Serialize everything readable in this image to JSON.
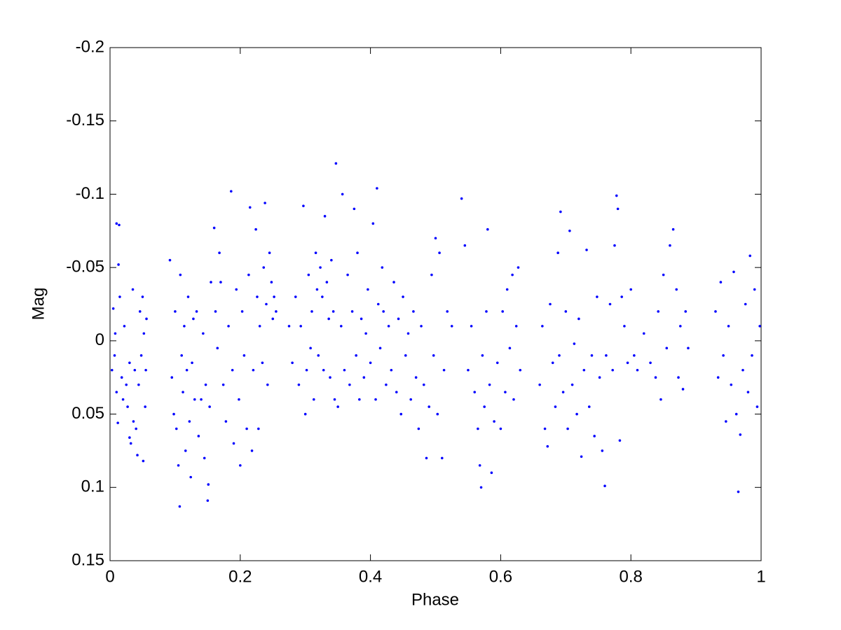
{
  "chart_data": {
    "type": "scatter",
    "xlabel": "Phase",
    "ylabel": "Mag",
    "color": "#0000ff",
    "xlim": [
      0,
      1
    ],
    "ylim": [
      -0.2,
      0.15
    ],
    "yreverse": true,
    "xticks": [
      0,
      0.2,
      0.4,
      0.6,
      0.8,
      1
    ],
    "yticks": [
      -0.2,
      -0.15,
      -0.1,
      -0.05,
      0,
      0.05,
      0.1,
      0.15
    ],
    "x": [
      0.003,
      0.005,
      0.007,
      0.008,
      0.01,
      0.01,
      0.014,
      0.012,
      0.015,
      0.018,
      0.02,
      0.022,
      0.025,
      0.027,
      0.03,
      0.032,
      0.035,
      0.036,
      0.038,
      0.04,
      0.042,
      0.044,
      0.046,
      0.048,
      0.05,
      0.051,
      0.052,
      0.054,
      0.055,
      0.056,
      0.013,
      0.03,
      0.092,
      0.095,
      0.098,
      0.1,
      0.102,
      0.105,
      0.107,
      0.108,
      0.11,
      0.112,
      0.114,
      0.116,
      0.118,
      0.12,
      0.122,
      0.124,
      0.126,
      0.128,
      0.13,
      0.133,
      0.136,
      0.14,
      0.143,
      0.145,
      0.147,
      0.15,
      0.151,
      0.153,
      0.155,
      0.16,
      0.162,
      0.165,
      0.168,
      0.17,
      0.174,
      0.178,
      0.182,
      0.186,
      0.188,
      0.19,
      0.194,
      0.198,
      0.2,
      0.203,
      0.206,
      0.21,
      0.213,
      0.215,
      0.218,
      0.22,
      0.224,
      0.226,
      0.228,
      0.23,
      0.234,
      0.236,
      0.238,
      0.24,
      0.242,
      0.245,
      0.248,
      0.25,
      0.252,
      0.255,
      0.275,
      0.28,
      0.285,
      0.29,
      0.293,
      0.297,
      0.3,
      0.302,
      0.305,
      0.308,
      0.31,
      0.313,
      0.316,
      0.318,
      0.32,
      0.323,
      0.326,
      0.328,
      0.33,
      0.333,
      0.336,
      0.338,
      0.34,
      0.343,
      0.345,
      0.347,
      0.35,
      0.355,
      0.357,
      0.36,
      0.365,
      0.368,
      0.372,
      0.375,
      0.378,
      0.38,
      0.383,
      0.386,
      0.39,
      0.393,
      0.396,
      0.4,
      0.404,
      0.408,
      0.41,
      0.412,
      0.415,
      0.418,
      0.42,
      0.424,
      0.428,
      0.432,
      0.436,
      0.44,
      0.443,
      0.447,
      0.45,
      0.454,
      0.458,
      0.462,
      0.466,
      0.47,
      0.474,
      0.478,
      0.482,
      0.486,
      0.49,
      0.494,
      0.497,
      0.5,
      0.503,
      0.506,
      0.51,
      0.513,
      0.518,
      0.525,
      0.54,
      0.545,
      0.55,
      0.555,
      0.56,
      0.565,
      0.568,
      0.57,
      0.572,
      0.575,
      0.578,
      0.58,
      0.583,
      0.586,
      0.59,
      0.595,
      0.6,
      0.603,
      0.607,
      0.61,
      0.614,
      0.618,
      0.62,
      0.624,
      0.627,
      0.63,
      0.66,
      0.664,
      0.668,
      0.672,
      0.676,
      0.68,
      0.684,
      0.688,
      0.69,
      0.692,
      0.696,
      0.7,
      0.703,
      0.706,
      0.71,
      0.713,
      0.717,
      0.72,
      0.724,
      0.728,
      0.732,
      0.736,
      0.74,
      0.744,
      0.748,
      0.752,
      0.756,
      0.76,
      0.762,
      0.768,
      0.772,
      0.775,
      0.778,
      0.78,
      0.783,
      0.786,
      0.79,
      0.795,
      0.8,
      0.805,
      0.81,
      0.82,
      0.83,
      0.838,
      0.842,
      0.846,
      0.85,
      0.855,
      0.86,
      0.865,
      0.87,
      0.873,
      0.876,
      0.88,
      0.884,
      0.888,
      0.93,
      0.934,
      0.938,
      0.942,
      0.946,
      0.95,
      0.954,
      0.958,
      0.962,
      0.965,
      0.968,
      0.972,
      0.976,
      0.98,
      0.983,
      0.986,
      0.99,
      0.994,
      0.998
    ],
    "y": [
      0.02,
      -0.022,
      0.01,
      -0.005,
      0.035,
      -0.08,
      -0.079,
      0.056,
      -0.03,
      0.025,
      0.04,
      -0.01,
      0.03,
      0.045,
      0.015,
      0.07,
      -0.035,
      0.055,
      0.02,
      0.06,
      0.078,
      0.03,
      -0.02,
      0.01,
      -0.03,
      0.082,
      -0.005,
      0.045,
      0.02,
      -0.015,
      -0.052,
      0.066,
      -0.055,
      0.025,
      0.05,
      -0.02,
      0.06,
      0.085,
      0.113,
      -0.045,
      0.01,
      0.035,
      -0.01,
      0.075,
      0.02,
      -0.03,
      0.055,
      0.093,
      0.015,
      -0.015,
      0.04,
      -0.02,
      0.065,
      0.04,
      -0.005,
      0.08,
      0.03,
      0.109,
      0.098,
      0.045,
      -0.04,
      -0.077,
      -0.02,
      0.005,
      -0.06,
      -0.04,
      0.03,
      0.055,
      -0.01,
      -0.102,
      0.02,
      0.07,
      -0.035,
      0.04,
      0.085,
      -0.02,
      0.01,
      0.06,
      -0.045,
      -0.091,
      0.075,
      0.02,
      -0.076,
      -0.03,
      0.06,
      -0.01,
      0.015,
      -0.05,
      -0.094,
      -0.025,
      0.03,
      -0.06,
      -0.04,
      -0.015,
      -0.03,
      -0.02,
      -0.01,
      0.015,
      -0.03,
      0.03,
      -0.01,
      -0.092,
      0.05,
      0.02,
      -0.045,
      0.005,
      -0.02,
      0.04,
      -0.06,
      -0.035,
      0.01,
      -0.05,
      -0.03,
      0.02,
      -0.085,
      -0.04,
      -0.015,
      0.025,
      -0.055,
      -0.02,
      0.04,
      -0.121,
      0.045,
      -0.01,
      -0.1,
      0.02,
      -0.045,
      0.03,
      -0.02,
      -0.09,
      0.01,
      -0.06,
      0.04,
      -0.015,
      0.025,
      -0.005,
      -0.035,
      0.015,
      -0.08,
      0.04,
      -0.104,
      -0.025,
      0.005,
      -0.05,
      -0.02,
      0.03,
      -0.01,
      0.02,
      -0.04,
      0.035,
      -0.015,
      0.05,
      -0.03,
      0.01,
      -0.005,
      0.04,
      -0.02,
      0.025,
      0.06,
      -0.01,
      0.03,
      0.08,
      0.045,
      -0.045,
      0.01,
      -0.07,
      0.05,
      -0.06,
      0.08,
      0.02,
      -0.02,
      -0.01,
      -0.097,
      -0.065,
      0.02,
      -0.01,
      0.035,
      0.06,
      0.085,
      0.1,
      0.01,
      0.045,
      -0.02,
      -0.076,
      0.03,
      0.09,
      0.055,
      0.015,
      0.06,
      -0.02,
      0.035,
      -0.035,
      0.005,
      -0.045,
      0.04,
      -0.01,
      -0.05,
      0.02,
      0.03,
      -0.01,
      0.06,
      0.072,
      -0.025,
      0.015,
      0.045,
      -0.06,
      0.01,
      -0.088,
      0.035,
      -0.02,
      0.06,
      -0.075,
      0.03,
      0.002,
      0.05,
      -0.015,
      0.079,
      0.02,
      -0.062,
      0.045,
      0.01,
      0.065,
      -0.03,
      0.025,
      0.075,
      0.099,
      0.01,
      -0.025,
      0.02,
      -0.065,
      -0.099,
      -0.09,
      0.068,
      -0.03,
      -0.01,
      0.015,
      -0.035,
      0.01,
      0.02,
      -0.005,
      0.015,
      0.025,
      -0.02,
      0.04,
      -0.045,
      0.005,
      -0.065,
      -0.076,
      -0.035,
      0.025,
      -0.01,
      0.033,
      -0.02,
      0.005,
      -0.02,
      0.025,
      -0.04,
      0.01,
      0.055,
      -0.01,
      0.03,
      -0.047,
      0.05,
      0.103,
      0.064,
      0.02,
      -0.025,
      0.035,
      -0.058,
      0.01,
      -0.035,
      0.045,
      -0.01
    ]
  }
}
